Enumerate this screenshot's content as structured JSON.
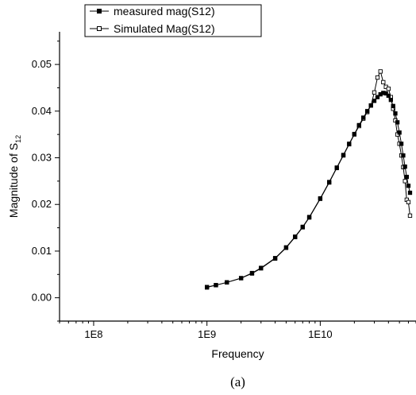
{
  "chart_data": {
    "type": "line",
    "xscale": "log",
    "xlim": [
      50000000,
      70000000000
    ],
    "ylim": [
      -0.005,
      0.057
    ],
    "x_ticks": [
      {
        "value": 100000000,
        "label": "1E8"
      },
      {
        "value": 1000000000,
        "label": "1E9"
      },
      {
        "value": 10000000000,
        "label": "1E10"
      }
    ],
    "y_ticks": [
      {
        "value": 0.0,
        "label": "0.00"
      },
      {
        "value": 0.01,
        "label": "0.01"
      },
      {
        "value": 0.02,
        "label": "0.02"
      },
      {
        "value": 0.03,
        "label": "0.03"
      },
      {
        "value": 0.04,
        "label": "0.04"
      },
      {
        "value": 0.05,
        "label": "0.05"
      }
    ],
    "xlabel": "Frequency",
    "ylabel_main": "Magnitude of S",
    "ylabel_sub": "12",
    "caption": "(a)",
    "legend_position": "top-left",
    "series": [
      {
        "name": "measured mag(S12)",
        "marker": "filled-square",
        "color": "#000000",
        "x": [
          1000000000,
          1200000000,
          1500000000,
          2000000000,
          2500000000,
          3000000000,
          4000000000,
          5000000000,
          6000000000,
          7000000000,
          8000000000,
          10000000000,
          12000000000,
          14000000000,
          16000000000,
          18000000000,
          20000000000,
          22000000000,
          24000000000,
          26000000000,
          28000000000,
          30000000000,
          32000000000,
          34000000000,
          36000000000,
          38000000000,
          40000000000,
          42000000000,
          44000000000,
          46000000000,
          48000000000,
          50000000000,
          52000000000,
          54000000000,
          56000000000,
          58000000000,
          60000000000,
          62000000000
        ],
        "y": [
          0.0023,
          0.0027,
          0.0033,
          0.0042,
          0.0053,
          0.0064,
          0.0085,
          0.0108,
          0.0131,
          0.0152,
          0.0173,
          0.0213,
          0.0248,
          0.0279,
          0.0306,
          0.033,
          0.0351,
          0.037,
          0.0386,
          0.04,
          0.0412,
          0.0422,
          0.043,
          0.0436,
          0.0439,
          0.0438,
          0.0433,
          0.0424,
          0.0411,
          0.0395,
          0.0376,
          0.0354,
          0.033,
          0.0305,
          0.0281,
          0.0259,
          0.024,
          0.0225
        ]
      },
      {
        "name": "Simulated Mag(S12)",
        "marker": "open-square",
        "color": "#000000",
        "x": [
          1000000000,
          1200000000,
          1500000000,
          2000000000,
          2500000000,
          3000000000,
          4000000000,
          5000000000,
          6000000000,
          7000000000,
          8000000000,
          10000000000,
          12000000000,
          14000000000,
          16000000000,
          18000000000,
          20000000000,
          22000000000,
          24000000000,
          26000000000,
          28000000000,
          30000000000,
          32000000000,
          34000000000,
          36000000000,
          38000000000,
          40000000000,
          42000000000,
          44000000000,
          46000000000,
          48000000000,
          50000000000,
          52000000000,
          54000000000,
          56000000000,
          58000000000,
          60000000000,
          62000000000
        ],
        "y": [
          0.0022,
          0.0027,
          0.0033,
          0.0042,
          0.0052,
          0.0063,
          0.0084,
          0.0107,
          0.013,
          0.0151,
          0.0172,
          0.0212,
          0.0247,
          0.0278,
          0.0305,
          0.0329,
          0.035,
          0.0368,
          0.0384,
          0.0398,
          0.0412,
          0.044,
          0.0472,
          0.0485,
          0.0462,
          0.0452,
          0.0448,
          0.043,
          0.0405,
          0.038,
          0.035,
          0.033,
          0.0305,
          0.028,
          0.025,
          0.021,
          0.0205,
          0.0176
        ]
      }
    ]
  }
}
